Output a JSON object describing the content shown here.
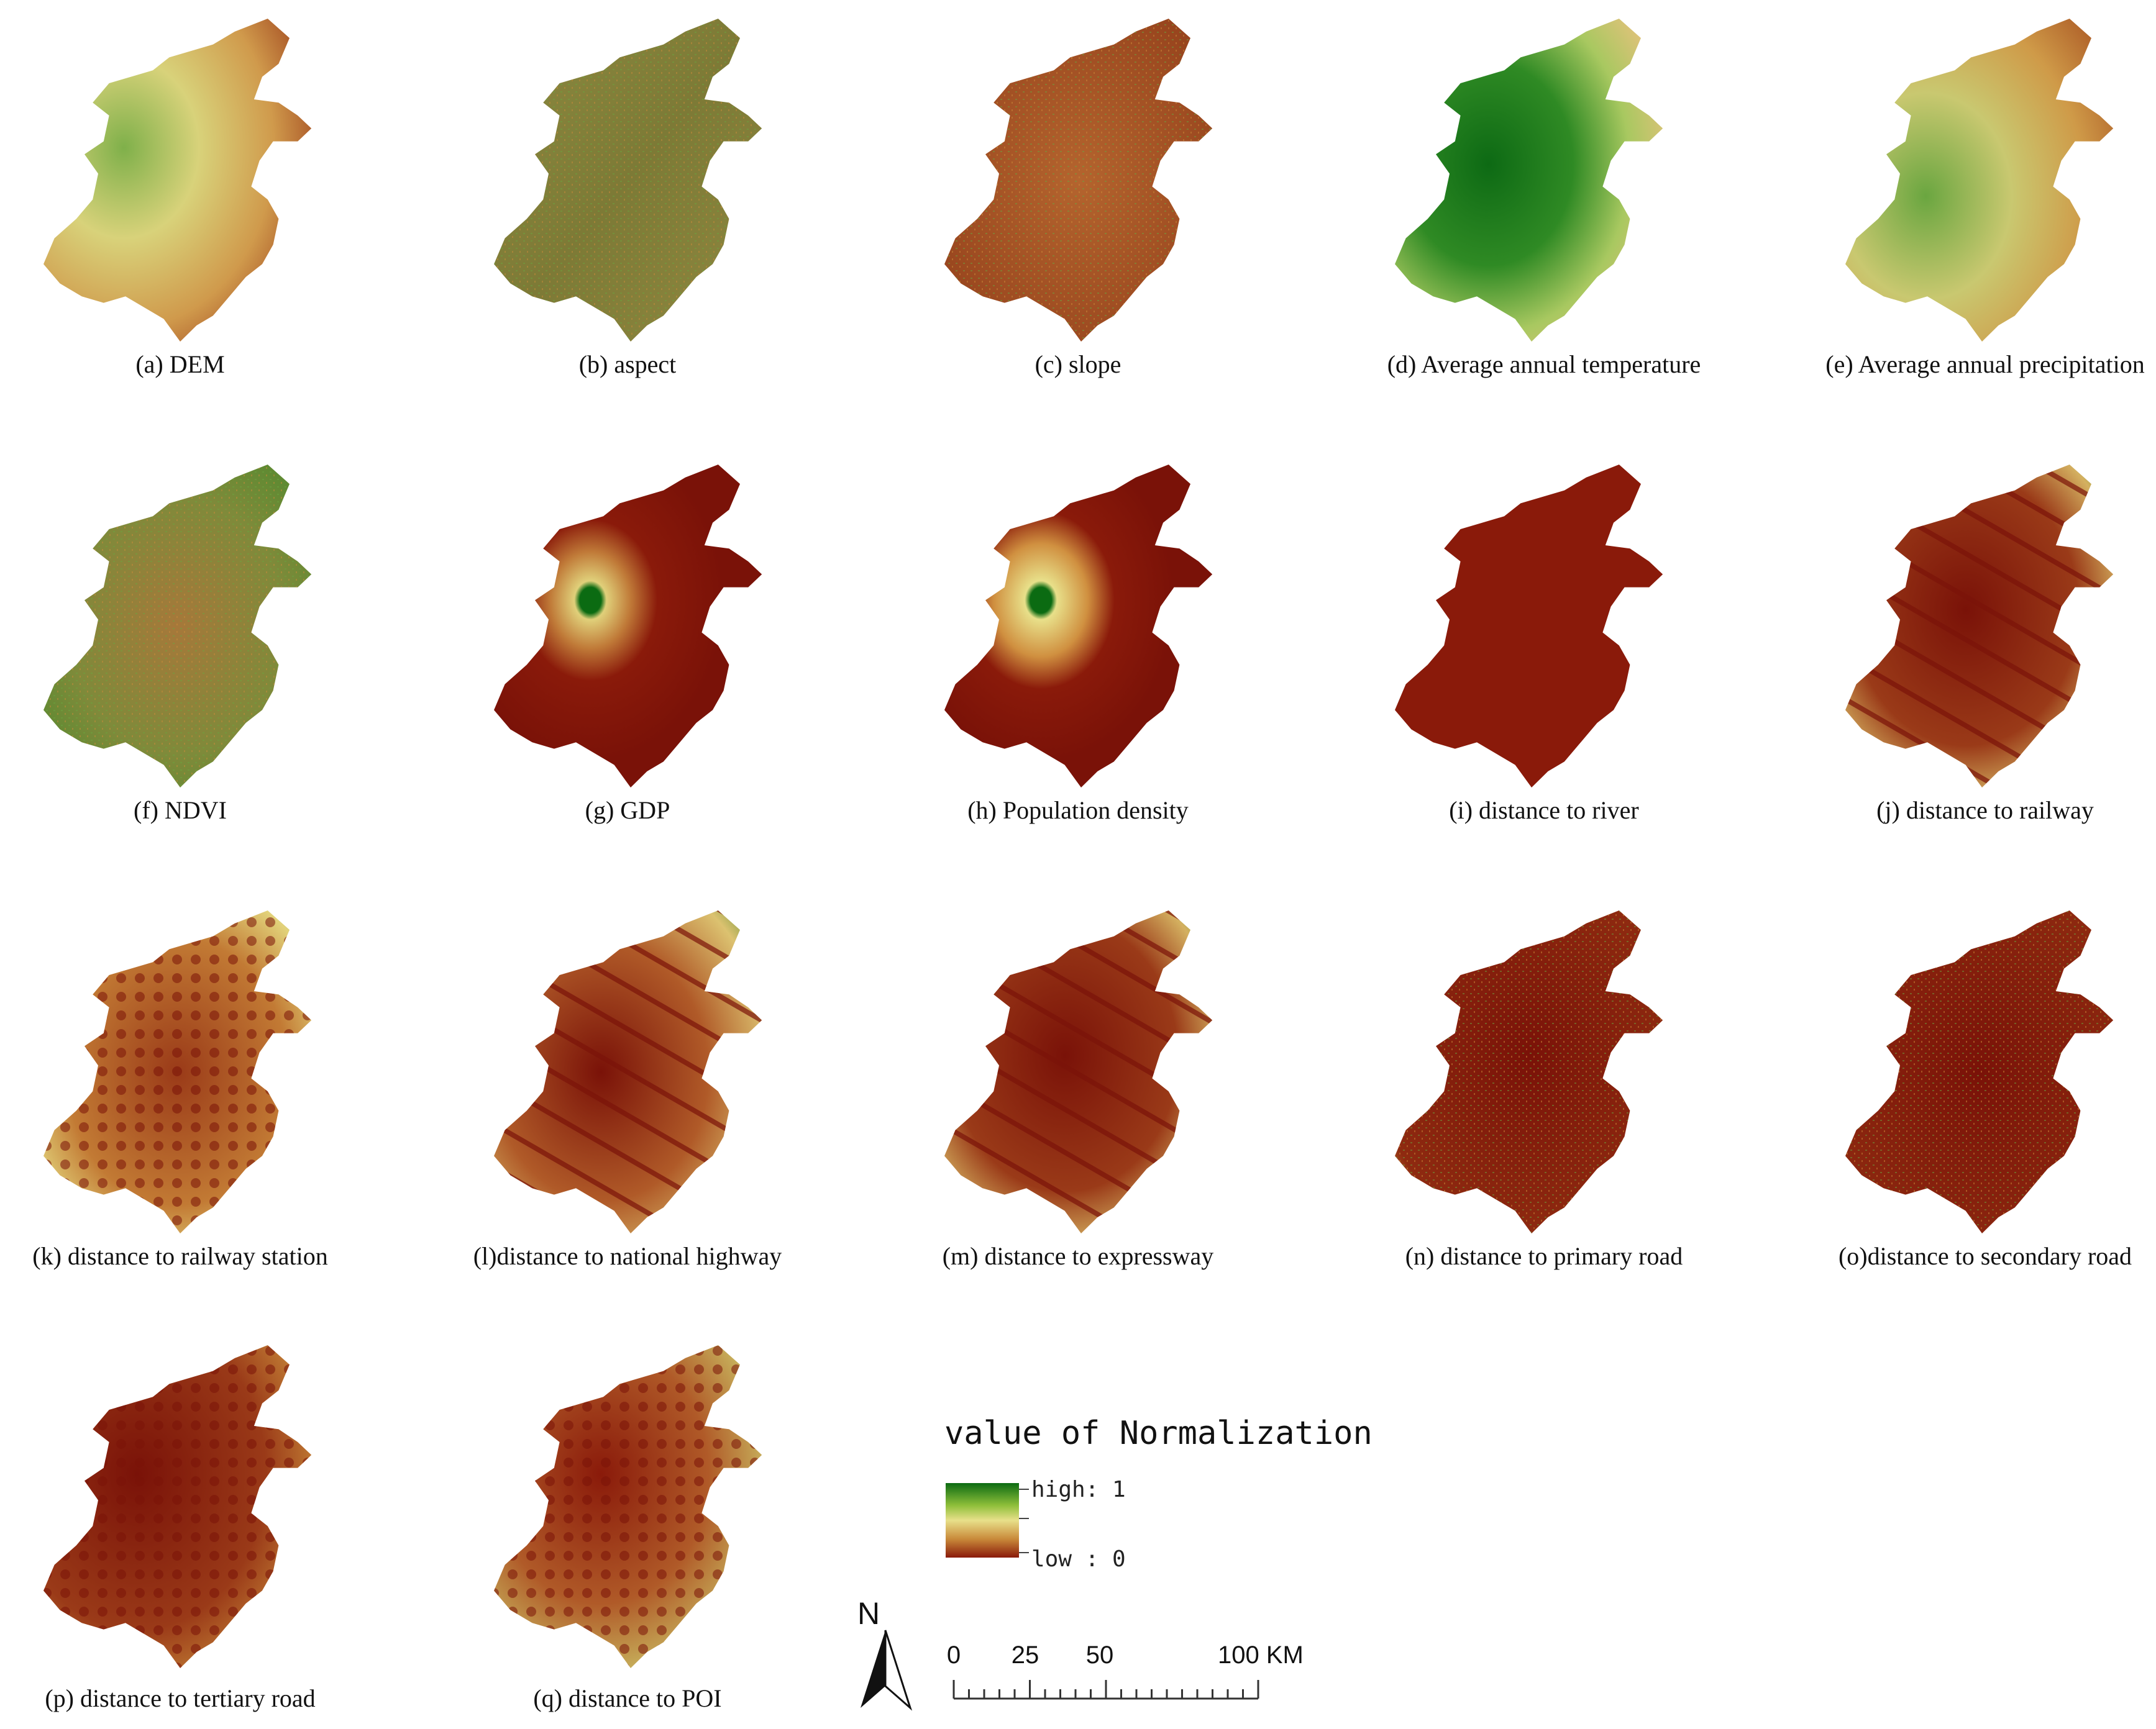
{
  "panels": [
    {
      "label": "(a) DEM",
      "style": "dem"
    },
    {
      "label": "(b) aspect",
      "style": "aspect"
    },
    {
      "label": "(c) slope",
      "style": "slope"
    },
    {
      "label": "(d) Average annual temperature",
      "style": "temp"
    },
    {
      "label": "(e) Average annual precipitation",
      "style": "precip"
    },
    {
      "label": "(f) NDVI",
      "style": "ndvi"
    },
    {
      "label": "(g) GDP",
      "style": "gdp"
    },
    {
      "label": "(h) Population density",
      "style": "pop"
    },
    {
      "label": "(i) distance to river",
      "style": "bands"
    },
    {
      "label": "(j) distance to railway",
      "style": "network"
    },
    {
      "label": "(k) distance to railway station",
      "style": "blobs"
    },
    {
      "label": "(l)distance to national highway",
      "style": "radial"
    },
    {
      "label": "(m) distance to expressway",
      "style": "network"
    },
    {
      "label": "(n) distance to primary road",
      "style": "dense"
    },
    {
      "label": "(o)distance to secondary road",
      "style": "noise_red"
    },
    {
      "label": "(p) distance to tertiary road",
      "style": "dots"
    },
    {
      "label": "(q) distance to POI",
      "style": "dots_green"
    }
  ],
  "legend": {
    "title": "value of Normalization",
    "high_label": "high: 1",
    "low_label": "low : 0",
    "colors": [
      "#0b6b12",
      "#8fbf3a",
      "#e8e08a",
      "#c98a3a",
      "#8a1a0a"
    ]
  },
  "scale_bar": {
    "ticks": [
      "0",
      "25",
      "50",
      "100 KM"
    ],
    "tick_values_km": [
      0,
      25,
      50,
      100
    ]
  },
  "north_arrow": {
    "label": "N"
  }
}
